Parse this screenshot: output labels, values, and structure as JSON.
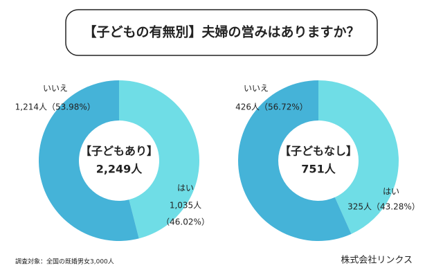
{
  "title": "【子どもの有無別】夫婦の営みはありますか？",
  "chart_data": [
    {
      "type": "pie",
      "center_title": "【子どもあり】",
      "total": {
        "value": 2249,
        "label": "2,249人"
      },
      "categories": [
        "いいえ",
        "はい"
      ],
      "values": [
        53.98,
        46.02
      ],
      "value_labels": [
        "（53.98%）",
        "（46.02%）"
      ],
      "counts": [
        {
          "value": 1214,
          "label": "1,214人"
        },
        {
          "value": 1035,
          "label": "1,035人"
        }
      ],
      "colors": [
        "#45b3d8",
        "#6fdde6"
      ]
    },
    {
      "type": "pie",
      "center_title": "【子どもなし】",
      "total": {
        "value": 751,
        "label": "751人"
      },
      "categories": [
        "いいえ",
        "はい"
      ],
      "values": [
        56.72,
        43.28
      ],
      "value_labels": [
        "（56.72%）",
        "（43.28%）"
      ],
      "counts": [
        {
          "value": 426,
          "label": "426人"
        },
        {
          "value": 325,
          "label": "325人"
        }
      ],
      "colors": [
        "#45b3d8",
        "#6fdde6"
      ]
    }
  ],
  "note": "調査対象：全国の既婚男女3,000人",
  "source": "株式会社リンクス"
}
